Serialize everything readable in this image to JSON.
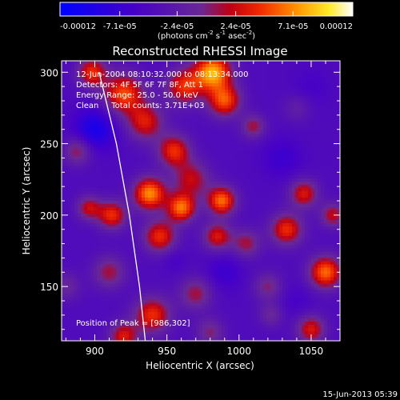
{
  "chart_data": {
    "type": "heatmap",
    "title": "Reconstructed RHESSI Image",
    "xlabel": "Heliocentric X (arcsec)",
    "ylabel": "Heliocentric Y (arcsec)",
    "xlim": [
      877,
      1070
    ],
    "ylim": [
      112,
      308
    ],
    "x_ticks": [
      900,
      950,
      1000,
      1050
    ],
    "y_ticks": [
      150,
      200,
      250,
      300
    ],
    "colorbar": {
      "ticks": [
        "-0.00012",
        "-7.1e-05",
        "-2.4e-05",
        "2.4e-05",
        "7.1e-05",
        "0.00012"
      ],
      "tick_values": [
        -0.00012,
        -7.1e-05,
        -2.4e-05,
        2.4e-05,
        7.1e-05,
        0.00012
      ],
      "unit_parts": [
        "(photons cm",
        "-2",
        " s",
        "-1",
        " asec",
        "-2",
        ")"
      ],
      "range": [
        -0.00012,
        0.00012
      ]
    },
    "annotations": [
      "12-Jun-2004 08:10:32.000 to 08:13:34.000",
      "Detectors: 4F 5F 6F 7F 8F, Att 1",
      "Energy Range: 25.0 - 50.0 keV",
      "Clean     Total counts: 3.71E+03"
    ],
    "peak_label": "Position of Peak = [986,302]",
    "peak": [
      986,
      302
    ],
    "limb_points": [
      [
        903,
        300
      ],
      [
        915,
        250
      ],
      [
        924,
        200
      ],
      [
        931,
        150
      ],
      [
        935,
        112
      ]
    ],
    "blobs": [
      {
        "x": 982,
        "y": 300,
        "v": 0.00012,
        "s": 9
      },
      {
        "x": 962,
        "y": 290,
        "v": 8e-05,
        "s": 9
      },
      {
        "x": 990,
        "y": 280,
        "v": 9e-05,
        "s": 8
      },
      {
        "x": 920,
        "y": 285,
        "v": 9e-05,
        "s": 10
      },
      {
        "x": 935,
        "y": 265,
        "v": 7e-05,
        "s": 9
      },
      {
        "x": 898,
        "y": 300,
        "v": 8e-05,
        "s": 7
      },
      {
        "x": 888,
        "y": 245,
        "v": 5e-05,
        "s": 7
      },
      {
        "x": 955,
        "y": 245,
        "v": 8e-05,
        "s": 8
      },
      {
        "x": 967,
        "y": 225,
        "v": 6e-05,
        "s": 9
      },
      {
        "x": 938,
        "y": 215,
        "v": 0.00011,
        "s": 8
      },
      {
        "x": 960,
        "y": 205,
        "v": 0.0001,
        "s": 7
      },
      {
        "x": 912,
        "y": 200,
        "v": 8e-05,
        "s": 7
      },
      {
        "x": 896,
        "y": 205,
        "v": 6e-05,
        "s": 6
      },
      {
        "x": 945,
        "y": 185,
        "v": 8e-05,
        "s": 8
      },
      {
        "x": 988,
        "y": 210,
        "v": 0.0001,
        "s": 7
      },
      {
        "x": 985,
        "y": 185,
        "v": 7e-05,
        "s": 7
      },
      {
        "x": 1005,
        "y": 180,
        "v": 5e-05,
        "s": 7
      },
      {
        "x": 1033,
        "y": 190,
        "v": 8e-05,
        "s": 8
      },
      {
        "x": 1045,
        "y": 215,
        "v": 7e-05,
        "s": 7
      },
      {
        "x": 1020,
        "y": 150,
        "v": 4e-05,
        "s": 7
      },
      {
        "x": 1010,
        "y": 262,
        "v": 5e-05,
        "s": 6
      },
      {
        "x": 1040,
        "y": 275,
        "v": 2e-05,
        "s": 7
      },
      {
        "x": 1060,
        "y": 160,
        "v": 0.0001,
        "s": 8
      },
      {
        "x": 1065,
        "y": 200,
        "v": 6e-05,
        "s": 6
      },
      {
        "x": 1050,
        "y": 120,
        "v": 7e-05,
        "s": 7
      },
      {
        "x": 1022,
        "y": 130,
        "v": 3e-05,
        "s": 6
      },
      {
        "x": 910,
        "y": 160,
        "v": 5e-05,
        "s": 8
      },
      {
        "x": 940,
        "y": 130,
        "v": 8e-05,
        "s": 9
      },
      {
        "x": 970,
        "y": 145,
        "v": 5e-05,
        "s": 8
      },
      {
        "x": 920,
        "y": 115,
        "v": 7e-05,
        "s": 7
      },
      {
        "x": 980,
        "y": 118,
        "v": 4e-05,
        "s": 7
      },
      {
        "x": 900,
        "y": 260,
        "v": -6e-05,
        "s": 10
      },
      {
        "x": 1030,
        "y": 240,
        "v": -3e-05,
        "s": 10
      },
      {
        "x": 1050,
        "y": 290,
        "v": -2e-05,
        "s": 10
      },
      {
        "x": 990,
        "y": 160,
        "v": -3e-05,
        "s": 9
      },
      {
        "x": 1040,
        "y": 140,
        "v": -2e-05,
        "s": 8
      },
      {
        "x": 955,
        "y": 168,
        "v": -2e-05,
        "s": 6
      },
      {
        "x": 880,
        "y": 150,
        "v": 3e-05,
        "s": 7
      }
    ]
  },
  "footer": {
    "timestamp": "15-Jun-2013 05:39"
  }
}
